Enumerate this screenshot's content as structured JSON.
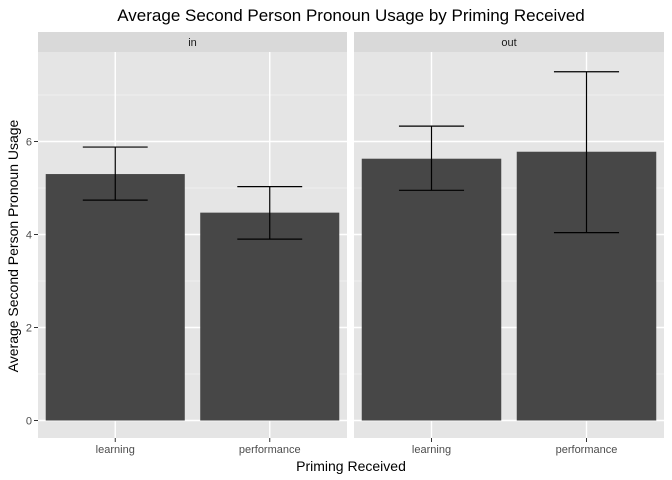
{
  "chart_data": {
    "type": "bar",
    "title": "Average Second Person Pronoun Usage by Priming Received",
    "xlabel": "Priming Received",
    "ylabel": "Average Second Person Pronoun Usage",
    "ylim": [
      0,
      7.5
    ],
    "yticks": [
      0,
      2,
      4,
      6
    ],
    "grid": true,
    "facets": [
      {
        "label": "in",
        "categories": [
          "learning",
          "performance"
        ],
        "values": [
          5.3,
          4.47
        ],
        "error_low": [
          4.74,
          3.9
        ],
        "error_high": [
          5.88,
          5.03
        ]
      },
      {
        "label": "out",
        "categories": [
          "learning",
          "performance"
        ],
        "values": [
          5.63,
          5.78
        ],
        "error_low": [
          4.95,
          4.04
        ],
        "error_high": [
          6.33,
          7.5
        ]
      }
    ],
    "colors": {
      "bar": "#474747",
      "panel_background": "#e5e5e5",
      "strip_background": "#d9d9d9",
      "grid_major": "#ffffff",
      "grid_minor": "#f2f2f2",
      "error_bar": "#000000",
      "tick_text": "#4d4d4d"
    }
  }
}
